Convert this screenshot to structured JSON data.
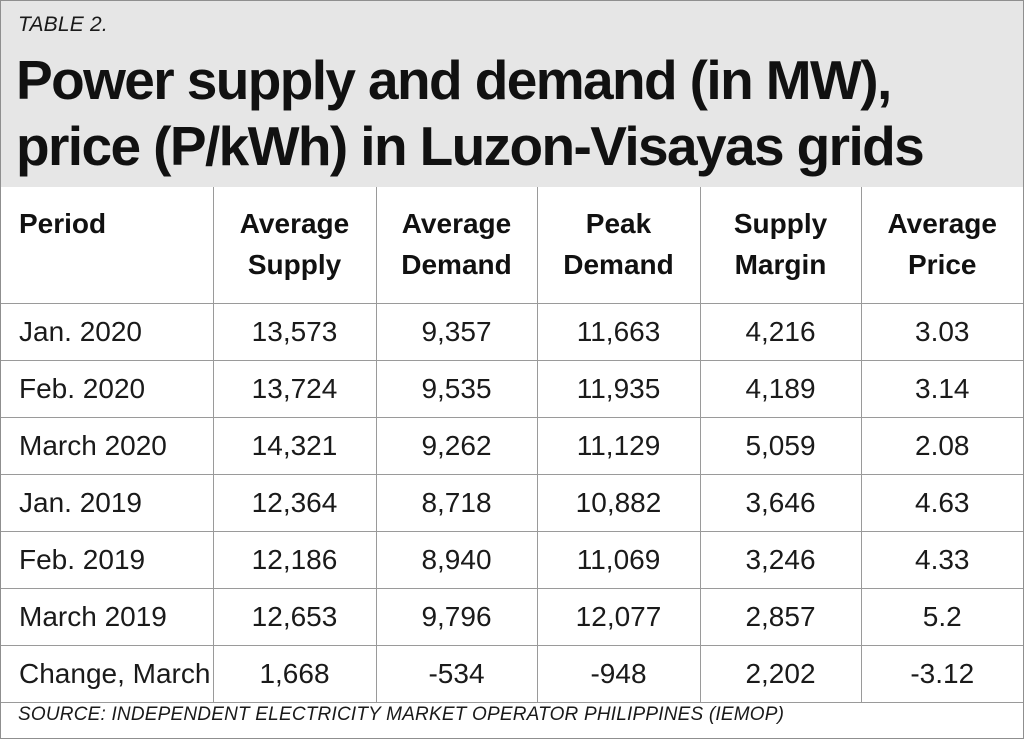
{
  "header": {
    "label": "TABLE 2.",
    "title_line1": "Power supply and demand (in MW),",
    "title_line2": "price (P/kWh) in Luzon-Visayas grids"
  },
  "table": {
    "columns": [
      {
        "line1": "Period",
        "line2": ""
      },
      {
        "line1": "Average",
        "line2": "Supply"
      },
      {
        "line1": "Average",
        "line2": "Demand"
      },
      {
        "line1": "Peak",
        "line2": "Demand"
      },
      {
        "line1": "Supply",
        "line2": "Margin"
      },
      {
        "line1": "Average",
        "line2": "Price"
      }
    ],
    "rows": [
      [
        "Jan. 2020",
        "13,573",
        "9,357",
        "11,663",
        "4,216",
        "3.03"
      ],
      [
        "Feb. 2020",
        "13,724",
        "9,535",
        "11,935",
        "4,189",
        "3.14"
      ],
      [
        "March 2020",
        "14,321",
        "9,262",
        "11,129",
        "5,059",
        "2.08"
      ],
      [
        "Jan. 2019",
        "12,364",
        "8,718",
        "10,882",
        "3,646",
        "4.63"
      ],
      [
        "Feb. 2019",
        "12,186",
        "8,940",
        "11,069",
        "3,246",
        "4.33"
      ],
      [
        "March 2019",
        "12,653",
        "9,796",
        "12,077",
        "2,857",
        "5.2"
      ],
      [
        "Change, March",
        "1,668",
        "-534",
        "-948",
        "2,202",
        "-3.12"
      ]
    ]
  },
  "source": "SOURCE: INDEPENDENT ELECTRICITY MARKET OPERATOR PHILIPPINES (IEMOP)",
  "colors": {
    "header_bg": "#e6e6e6",
    "border": "#9a9a9a",
    "text": "#1a1a1a"
  }
}
